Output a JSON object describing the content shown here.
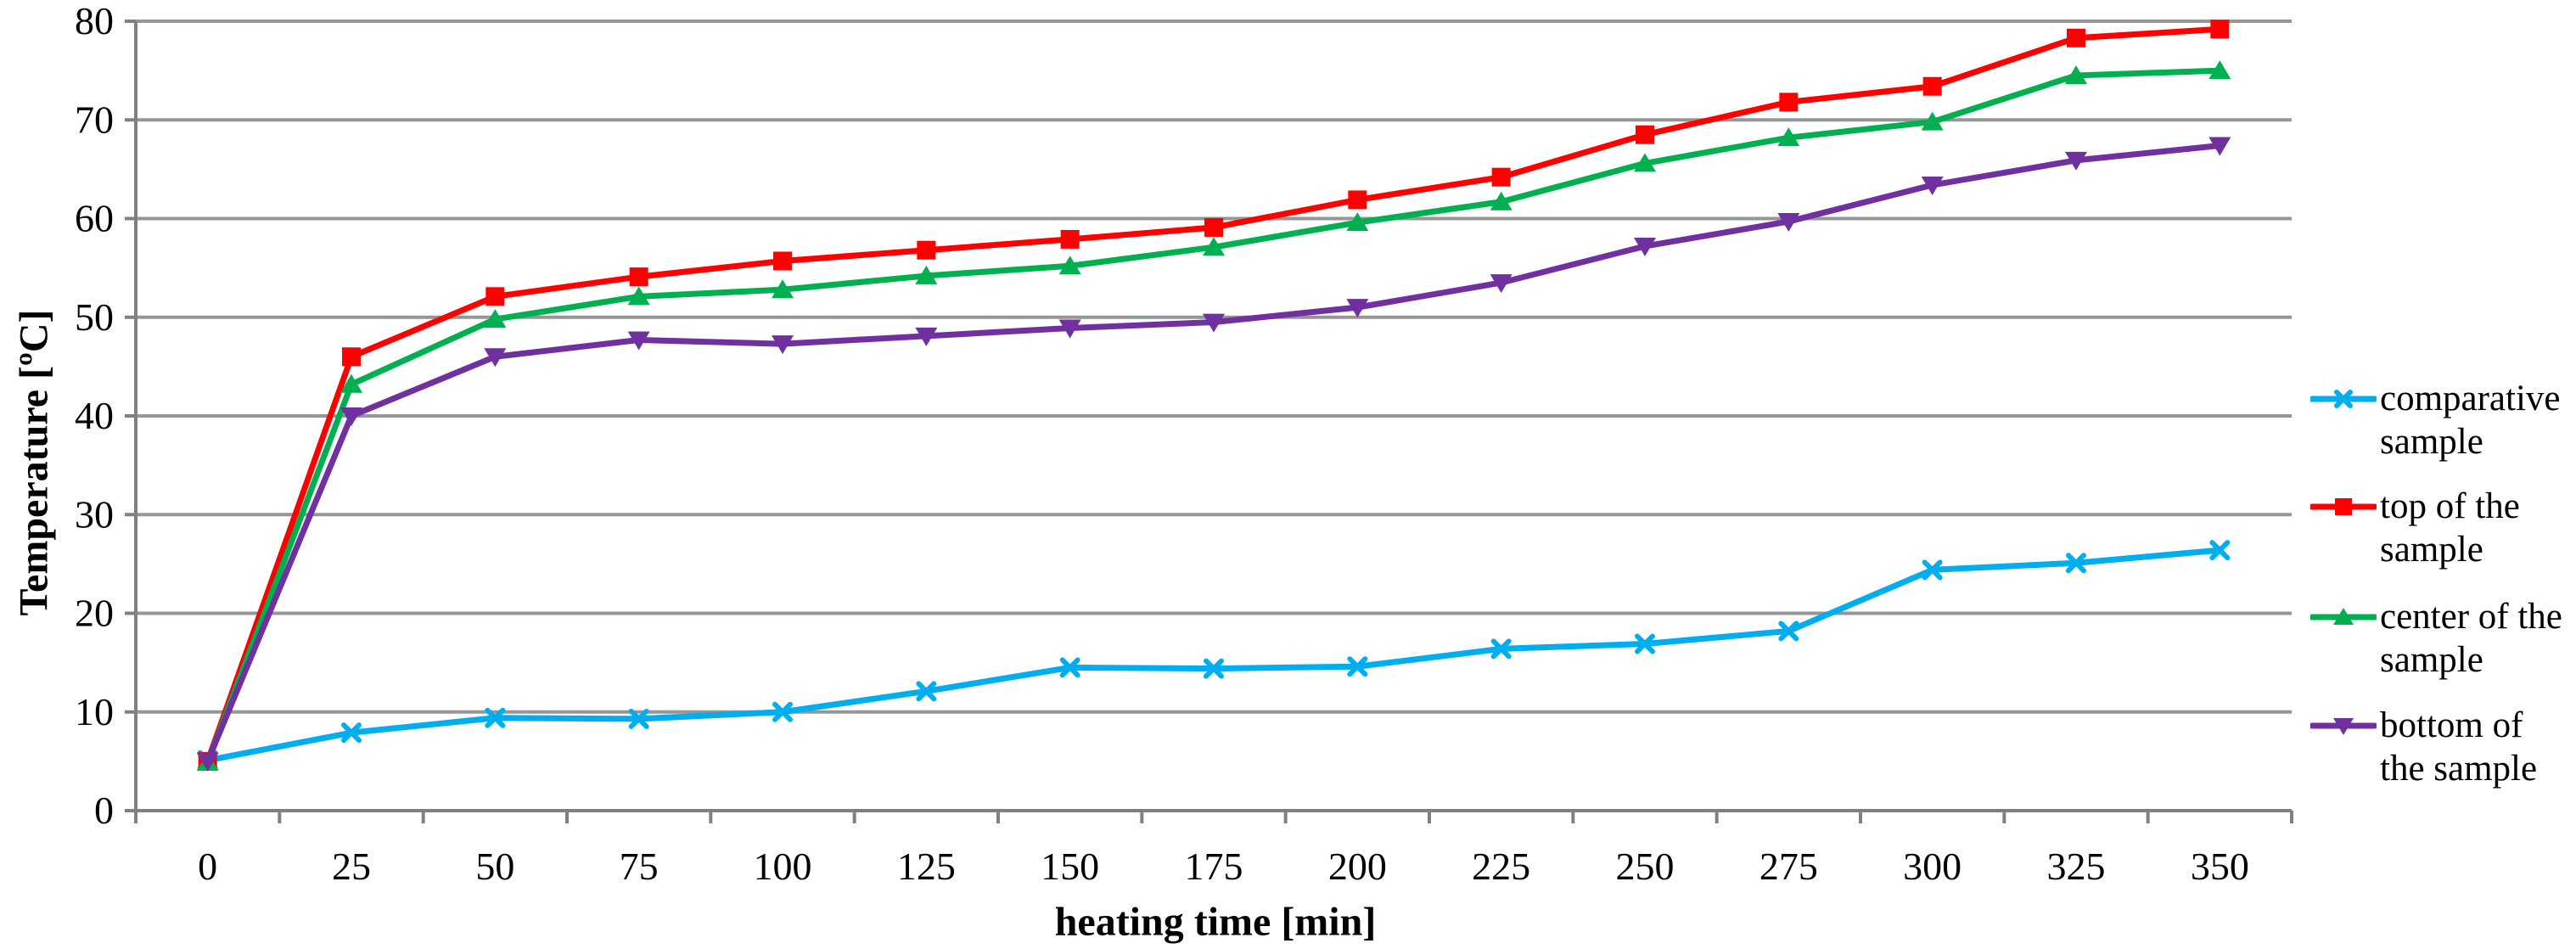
{
  "chart_data": {
    "type": "line",
    "title": "",
    "xlabel": "heating time [min]",
    "ylabel": "Temperature [ºC]",
    "x": [
      0,
      25,
      50,
      75,
      100,
      125,
      150,
      175,
      200,
      225,
      250,
      275,
      300,
      325,
      350
    ],
    "x_tick_labels": [
      "0",
      "25",
      "50",
      "75",
      "100",
      "125",
      "150",
      "175",
      "200",
      "225",
      "250",
      "275",
      "300",
      "325",
      "350"
    ],
    "y_ticks": [
      0,
      10,
      20,
      30,
      40,
      50,
      60,
      70,
      80
    ],
    "y_tick_labels": [
      "0",
      "10",
      "20",
      "30",
      "40",
      "50",
      "60",
      "70",
      "80"
    ],
    "ylim": [
      0,
      80
    ],
    "grid": "horizontal",
    "legend_position": "right",
    "series": [
      {
        "name": "comparative sample",
        "legend_lines": [
          "comparative",
          "sample"
        ],
        "color": "#00AEEF",
        "marker": "x",
        "values": [
          5.1,
          7.9,
          9.4,
          9.3,
          10.0,
          12.1,
          14.5,
          14.4,
          14.6,
          16.4,
          16.9,
          18.2,
          24.4,
          25.1,
          26.4
        ]
      },
      {
        "name": "top of the sample",
        "legend_lines": [
          "top of the",
          "sample"
        ],
        "color": "#FF0000",
        "marker": "square",
        "values": [
          5.0,
          46.0,
          52.1,
          54.1,
          55.7,
          56.8,
          57.9,
          59.1,
          61.9,
          64.2,
          68.5,
          71.8,
          73.4,
          78.3,
          79.2
        ]
      },
      {
        "name": "center of the sample",
        "legend_lines": [
          "center of the",
          "sample"
        ],
        "color": "#00B050",
        "marker": "triangle-up",
        "values": [
          4.9,
          43.2,
          49.8,
          52.1,
          52.8,
          54.2,
          55.2,
          57.1,
          59.6,
          61.7,
          65.6,
          68.2,
          69.8,
          74.5,
          75.0
        ]
      },
      {
        "name": "bottom of the sample",
        "legend_lines": [
          "bottom of",
          "the sample"
        ],
        "color": "#7030A0",
        "marker": "triangle-down",
        "values": [
          5.0,
          40.0,
          46.0,
          47.7,
          47.3,
          48.1,
          48.9,
          49.5,
          51.0,
          53.5,
          57.2,
          59.7,
          63.4,
          65.9,
          67.4
        ]
      }
    ],
    "grid_color": "#969696",
    "axis_color": "#808080",
    "text_color": "#000000"
  }
}
